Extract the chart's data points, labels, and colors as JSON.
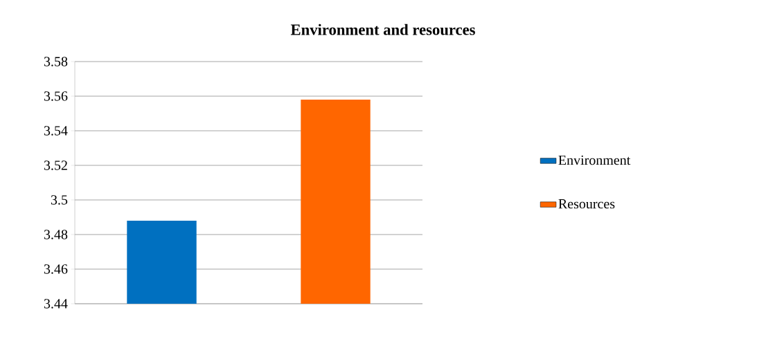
{
  "chart_data": {
    "type": "bar",
    "title": "Environment and resources",
    "categories": [
      null,
      null
    ],
    "series": [
      {
        "name": "Environment",
        "color": "#0070c0",
        "values": [
          3.488,
          null
        ]
      },
      {
        "name": "Resources",
        "color": "#ff6600",
        "values": [
          null,
          3.558
        ]
      }
    ],
    "ylim": [
      3.44,
      3.58
    ],
    "yticks": [
      3.44,
      3.46,
      3.48,
      3.5,
      3.52,
      3.54,
      3.56,
      3.58
    ],
    "grid": "y",
    "legend": "right"
  }
}
